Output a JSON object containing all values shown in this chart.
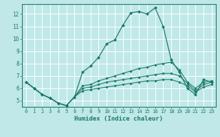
{
  "xlabel": "Humidex (Indice chaleur)",
  "bg_color": "#c0e8e8",
  "grid_color": "#ffffff",
  "line_color": "#1a7a6a",
  "xlim": [
    -0.5,
    23.5
  ],
  "ylim": [
    4.5,
    12.8
  ],
  "xticks": [
    0,
    1,
    2,
    3,
    4,
    5,
    6,
    7,
    8,
    9,
    10,
    11,
    12,
    13,
    14,
    15,
    16,
    17,
    18,
    19,
    20,
    21,
    22,
    23
  ],
  "yticks": [
    5,
    6,
    7,
    8,
    9,
    10,
    11,
    12
  ],
  "series": [
    [
      6.5,
      6.0,
      5.5,
      5.2,
      4.8,
      4.6,
      5.3,
      7.3,
      7.8,
      8.5,
      9.6,
      9.9,
      11.1,
      12.1,
      12.2,
      12.0,
      12.5,
      11.0,
      8.3,
      7.3,
      6.0,
      5.5,
      6.7,
      6.5
    ],
    [
      6.5,
      6.0,
      5.5,
      5.2,
      4.8,
      4.6,
      5.3,
      6.2,
      6.3,
      6.6,
      6.8,
      7.0,
      7.2,
      7.4,
      7.6,
      7.7,
      7.9,
      8.0,
      8.1,
      7.5,
      6.5,
      6.0,
      6.5,
      6.6
    ],
    [
      6.5,
      6.0,
      5.5,
      5.2,
      4.8,
      4.6,
      5.3,
      6.0,
      6.1,
      6.3,
      6.5,
      6.6,
      6.7,
      6.8,
      6.9,
      7.0,
      7.1,
      7.2,
      7.2,
      7.0,
      6.4,
      5.8,
      6.3,
      6.5
    ],
    [
      6.5,
      6.0,
      5.5,
      5.2,
      4.8,
      4.6,
      5.3,
      5.8,
      5.9,
      6.0,
      6.1,
      6.2,
      6.3,
      6.4,
      6.5,
      6.6,
      6.6,
      6.7,
      6.7,
      6.5,
      6.2,
      5.7,
      6.1,
      6.3
    ]
  ]
}
